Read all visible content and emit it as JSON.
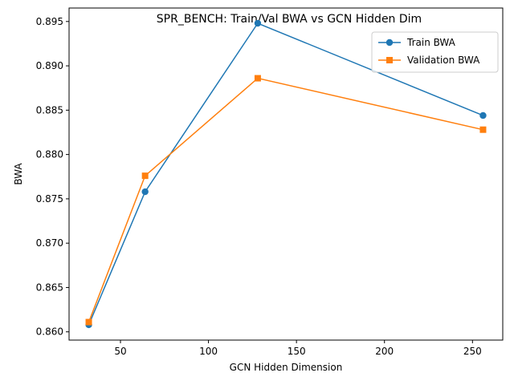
{
  "chart_data": {
    "type": "line",
    "title": "SPR_BENCH: Train/Val BWA vs GCN Hidden Dim",
    "xlabel": "GCN Hidden Dimension",
    "ylabel": "BWA",
    "x": [
      32,
      64,
      128,
      256
    ],
    "xlim": [
      20.8,
      267.2
    ],
    "ylim": [
      0.85907,
      0.89652
    ],
    "xticks": [
      "50",
      "100",
      "150",
      "200",
      "250"
    ],
    "yticks": [
      "0.860",
      "0.865",
      "0.870",
      "0.875",
      "0.880",
      "0.885",
      "0.890",
      "0.895"
    ],
    "grid": false,
    "legend_position": "top-right",
    "series": [
      {
        "name": "Train BWA",
        "values": [
          0.8608,
          0.8758,
          0.8948,
          0.8844
        ],
        "color": "#1f77b4",
        "marker": "circle"
      },
      {
        "name": "Validation BWA",
        "values": [
          0.8611,
          0.8776,
          0.8886,
          0.8828
        ],
        "color": "#ff7f0e",
        "marker": "square"
      }
    ]
  }
}
